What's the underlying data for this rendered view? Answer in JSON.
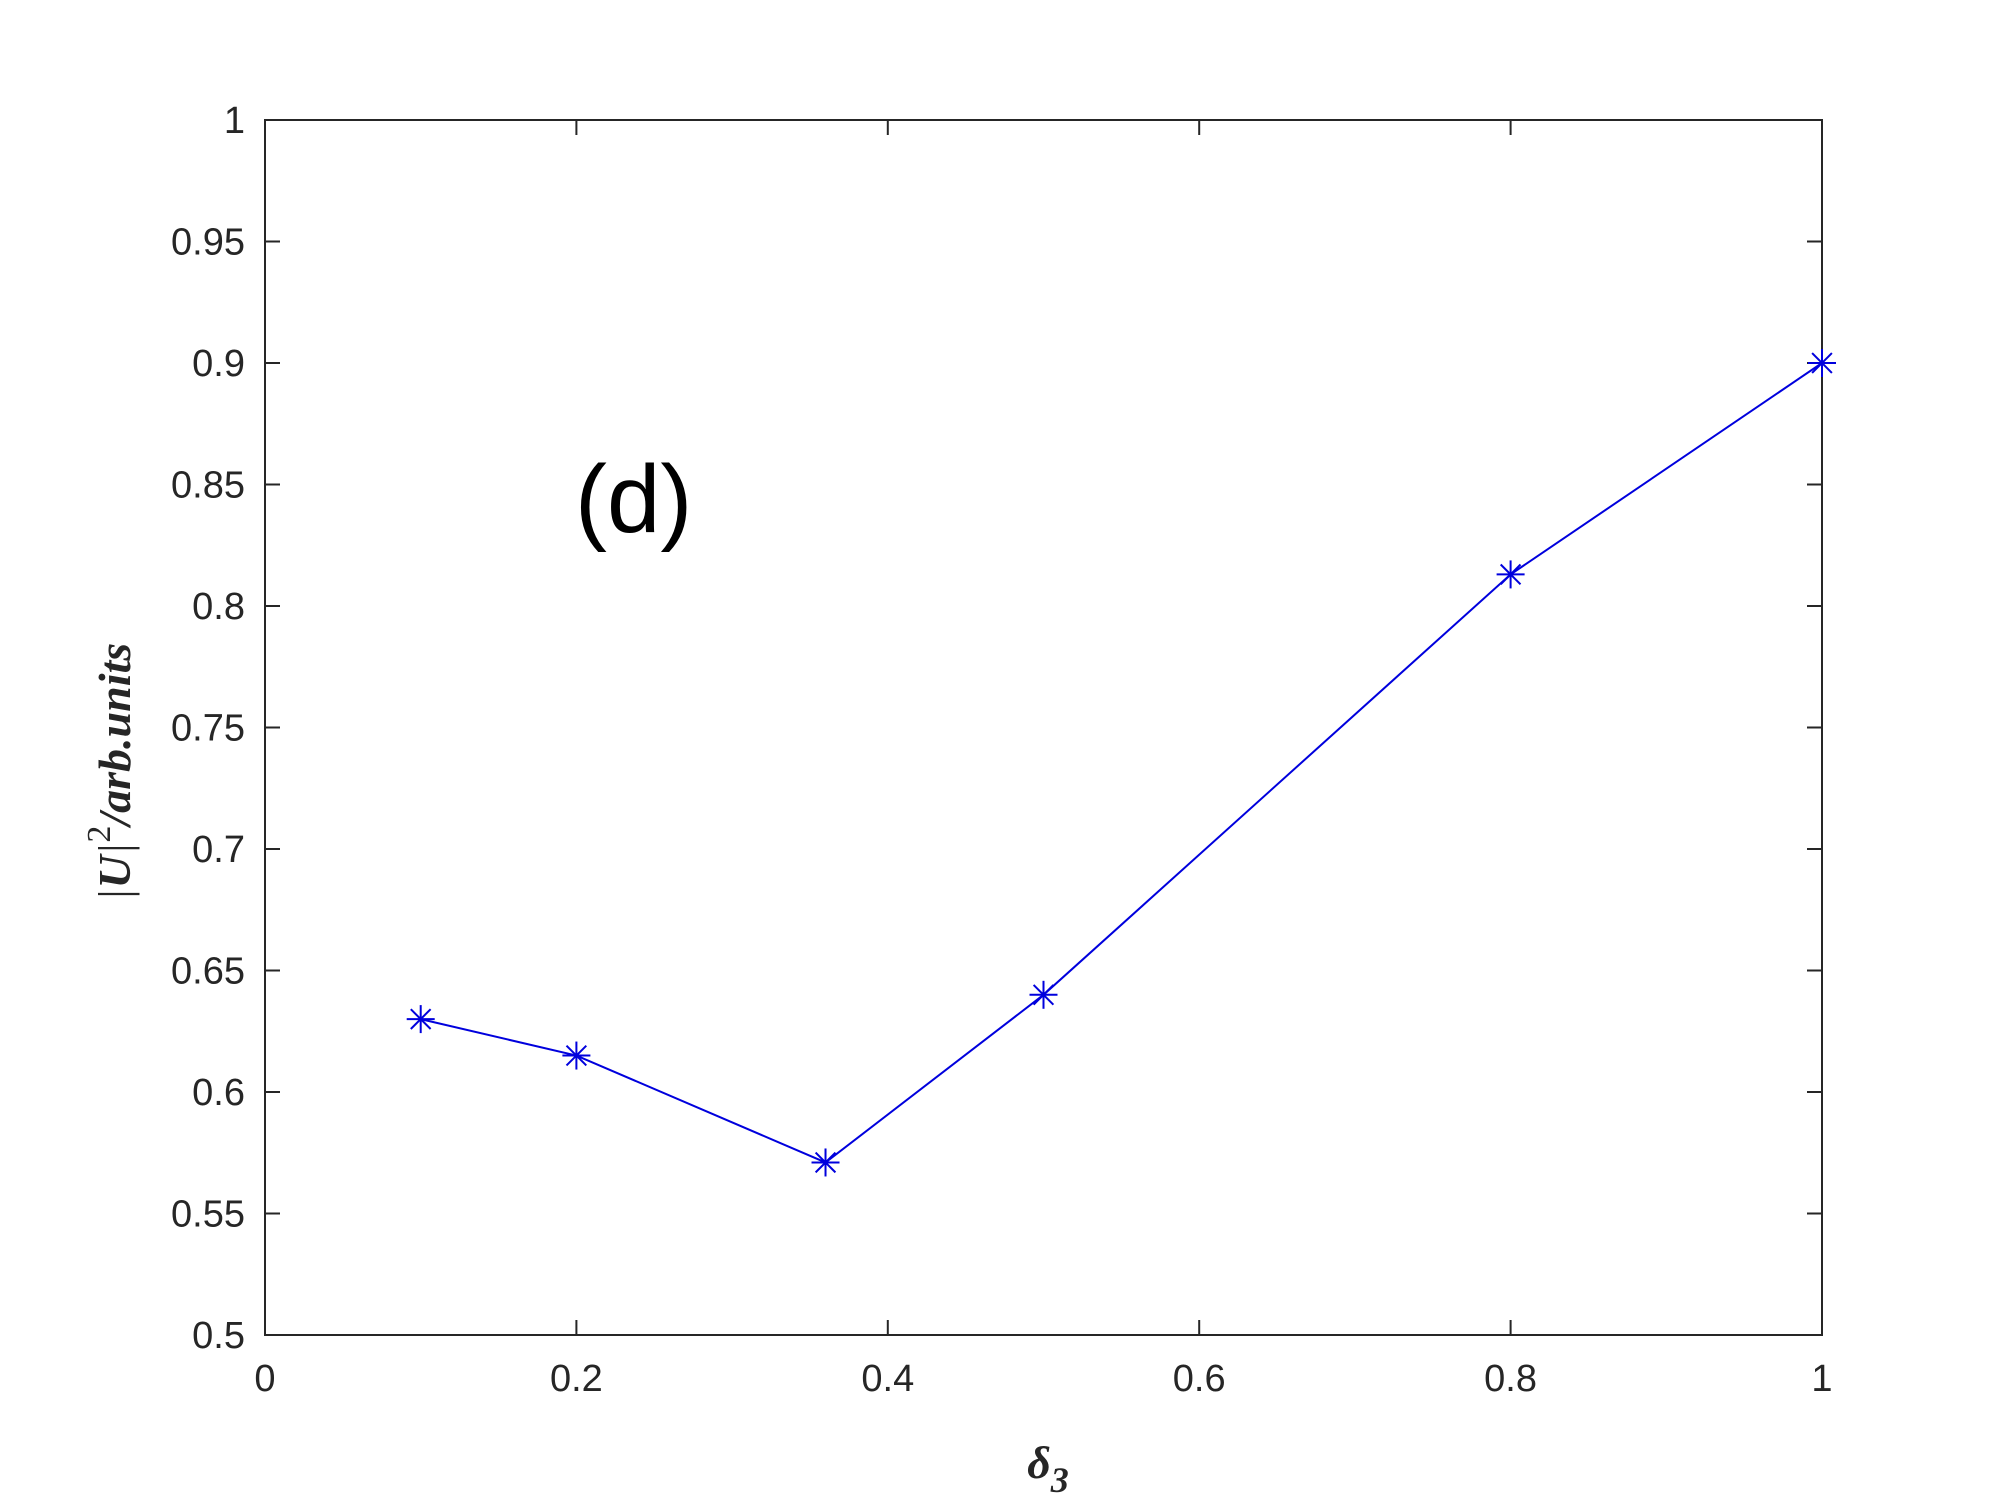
{
  "chart_data": {
    "type": "line",
    "annotation": "(d)",
    "xlabel": {
      "main": "δ",
      "sub": "3"
    },
    "ylabel": {
      "pre": "|",
      "var": "U",
      "mid": "|",
      "sup": "2",
      "post": "/arb.units"
    },
    "xlim": [
      0,
      1
    ],
    "ylim": [
      0.5,
      1
    ],
    "xticks": [
      {
        "value": 0,
        "label": "0"
      },
      {
        "value": 0.2,
        "label": "0.2"
      },
      {
        "value": 0.4,
        "label": "0.4"
      },
      {
        "value": 0.6,
        "label": "0.6"
      },
      {
        "value": 0.8,
        "label": "0.8"
      },
      {
        "value": 1,
        "label": "1"
      }
    ],
    "yticks": [
      {
        "value": 0.5,
        "label": "0.5"
      },
      {
        "value": 0.55,
        "label": "0.55"
      },
      {
        "value": 0.6,
        "label": "0.6"
      },
      {
        "value": 0.65,
        "label": "0.65"
      },
      {
        "value": 0.7,
        "label": "0.7"
      },
      {
        "value": 0.75,
        "label": "0.75"
      },
      {
        "value": 0.8,
        "label": "0.8"
      },
      {
        "value": 0.85,
        "label": "0.85"
      },
      {
        "value": 0.9,
        "label": "0.9"
      },
      {
        "value": 0.95,
        "label": "0.95"
      },
      {
        "value": 1,
        "label": "1"
      }
    ],
    "grid": false,
    "series": [
      {
        "color": "#0000dd",
        "marker": "asterisk",
        "x": [
          0.1,
          0.2,
          0.36,
          0.5,
          0.8,
          1.0
        ],
        "y": [
          0.63,
          0.615,
          0.571,
          0.64,
          0.813,
          0.9
        ]
      }
    ]
  }
}
